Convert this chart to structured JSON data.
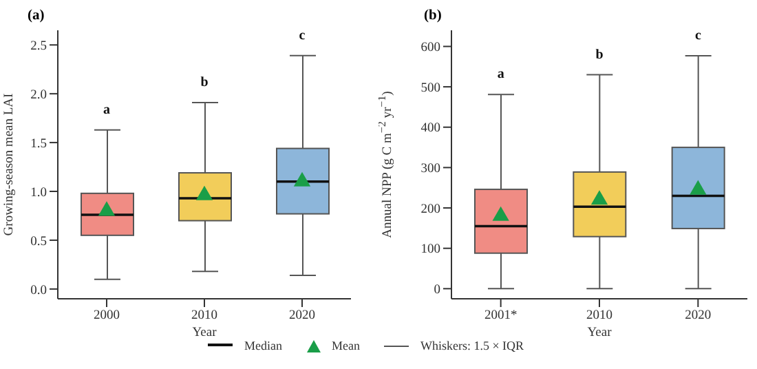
{
  "chart_data": [
    {
      "type": "box",
      "title": "(a)",
      "xlabel": "Year",
      "ylabel": "Growing-season mean LAI",
      "categories": [
        "2000",
        "2010",
        "2020"
      ],
      "colors": [
        "#f08c84",
        "#f2cd5a",
        "#8db6da"
      ],
      "boxes": [
        {
          "low": 0.1,
          "q1": 0.55,
          "median": 0.76,
          "q3": 0.98,
          "high": 1.63
        },
        {
          "low": 0.18,
          "q1": 0.7,
          "median": 0.93,
          "q3": 1.19,
          "high": 1.91
        },
        {
          "low": 0.14,
          "q1": 0.77,
          "median": 1.1,
          "q3": 1.44,
          "high": 2.39
        }
      ],
      "series": [
        {
          "type": "scatter",
          "color": "#1a9e48",
          "values": [
            0.8,
            0.96,
            1.1
          ]
        }
      ],
      "marker": "triangle",
      "ylim": [
        -0.1,
        2.65
      ],
      "yticks": [
        {
          "value": 0,
          "label": "0.0"
        },
        0.5,
        {
          "value": 1,
          "label": "1.0"
        },
        1.5,
        {
          "value": 2,
          "label": "2.0"
        },
        2.5
      ],
      "grid": false,
      "annotations": [
        "a",
        "b",
        "c"
      ]
    },
    {
      "type": "box",
      "title": "(b)",
      "xlabel": "Year",
      "ylabel": "Annual NPP (g C m$^{−2}$ yr$^{−1}$)",
      "categories": [
        "2001*",
        "2010",
        "2020"
      ],
      "colors": [
        "#f08c84",
        "#f2cd5a",
        "#8db6da"
      ],
      "boxes": [
        {
          "low": 0,
          "q1": 88,
          "median": 155,
          "q3": 246,
          "high": 481
        },
        {
          "low": 0,
          "q1": 129,
          "median": 203,
          "q3": 289,
          "high": 530
        },
        {
          "low": 0,
          "q1": 149,
          "median": 230,
          "q3": 350,
          "high": 577
        }
      ],
      "series": [
        {
          "name": "Mean",
          "type": "scatter",
          "color": "#1a9e48",
          "values": [
            180,
            220,
            245
          ]
        }
      ],
      "marker": "triangle",
      "ylim": [
        -25,
        640
      ],
      "yticks": [
        0,
        100,
        200,
        300,
        400,
        500,
        600
      ],
      "grid": false,
      "legend": "bottom",
      "annotations": [
        "a",
        "b",
        "c",
        "Median",
        "Whiskers: 1.5 × IQR"
      ]
    }
  ]
}
